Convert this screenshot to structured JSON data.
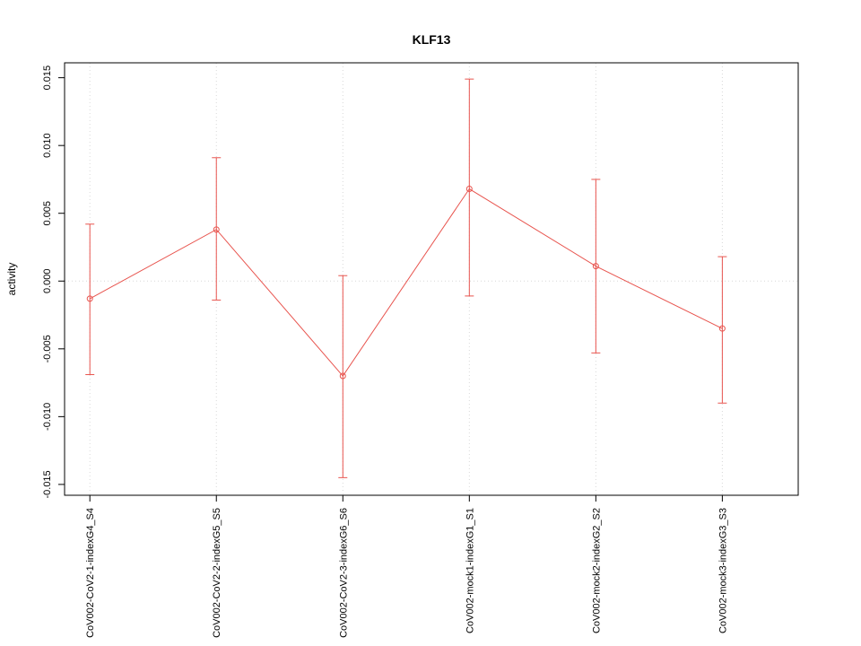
{
  "chart_data": {
    "type": "line",
    "title": "KLF13",
    "xlabel": "",
    "ylabel": "activity",
    "categories": [
      "CoV002-CoV2-1-indexG4_S4",
      "CoV002-CoV2-2-indexG5_S5",
      "CoV002-CoV2-3-indexG6_S6",
      "CoV002-mock1-indexG1_S1",
      "CoV002-mock2-indexG2_S2",
      "CoV002-mock3-indexG3_S3"
    ],
    "values": [
      -0.0013,
      0.0038,
      -0.007,
      0.0068,
      0.0011,
      -0.0035
    ],
    "error_low": [
      -0.0069,
      -0.0014,
      -0.0145,
      -0.0011,
      -0.0053,
      -0.009
    ],
    "error_high": [
      0.0042,
      0.0091,
      0.0004,
      0.0149,
      0.0075,
      0.0018
    ],
    "yticks": [
      -0.015,
      -0.01,
      -0.005,
      0.0,
      0.005,
      0.01,
      0.015
    ],
    "ytick_labels": [
      "-0.015",
      "-0.010",
      "-0.005",
      "0.000",
      "0.005",
      "0.010",
      "0.015"
    ],
    "ylim": [
      -0.0158,
      0.0161
    ],
    "grid": true,
    "zero_line": true,
    "legend": "none",
    "series_color": "#e8544e",
    "grid_color": "#d8d8d8",
    "box_color": "#000000"
  }
}
